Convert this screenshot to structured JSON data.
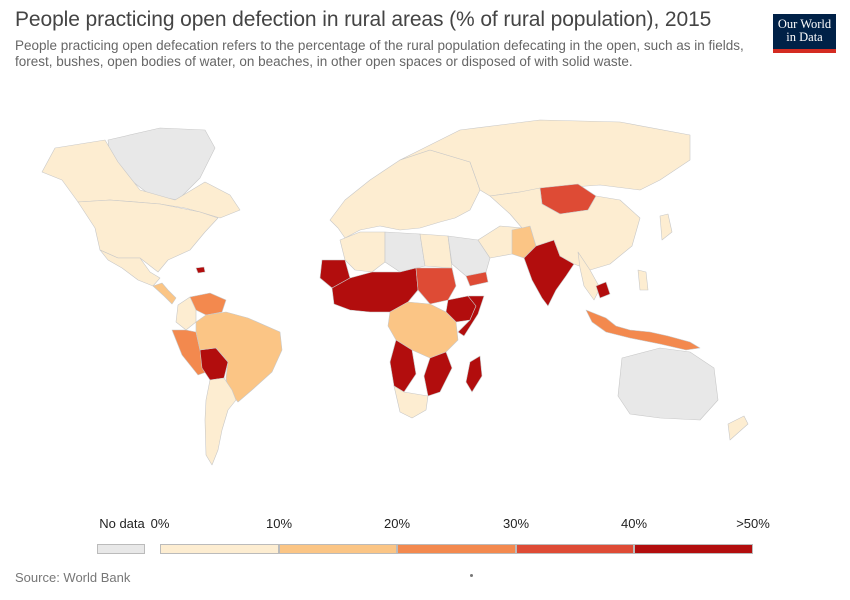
{
  "title": "People practicing open defection in rural areas (% of rural population), 2015",
  "subtitle": "People practicing open defecation refers to the percentage of the rural population defecating in the open, such as in fields, forest, bushes, open bodies of water, on beaches, in other open spaces or disposed of with solid waste.",
  "logo": {
    "line1": "Our World",
    "line2": "in Data"
  },
  "source": "Source: World Bank",
  "colors": {
    "no_data": "#e8e8e8",
    "b0": "#fdedd1",
    "b1": "#fbc585",
    "b2": "#f3894e",
    "b3": "#de4b35",
    "b4": "#b20d0d",
    "border": "#c8c8c8"
  },
  "legend": {
    "no_data_label": "No data",
    "ticks": [
      "0%",
      "10%",
      "20%",
      "30%",
      "40%",
      ">50%"
    ],
    "bins": [
      {
        "range": "0-10%",
        "color": "#fdedd1"
      },
      {
        "range": "10-20%",
        "color": "#fbc585"
      },
      {
        "range": "20-30%",
        "color": "#f3894e"
      },
      {
        "range": "30-40%",
        "color": "#de4b35"
      },
      {
        "range": "40-50%+",
        "color": "#b20d0d"
      }
    ]
  },
  "regions": [
    {
      "name": "Canada",
      "bin": "b0"
    },
    {
      "name": "Greenland",
      "bin": "no_data"
    },
    {
      "name": "United States",
      "bin": "b0"
    },
    {
      "name": "Mexico",
      "bin": "b0"
    },
    {
      "name": "Central America",
      "bin": "b1"
    },
    {
      "name": "Haiti",
      "bin": "b4"
    },
    {
      "name": "Colombia",
      "bin": "b0"
    },
    {
      "name": "Venezuela",
      "bin": "b2"
    },
    {
      "name": "Peru",
      "bin": "b2"
    },
    {
      "name": "Bolivia",
      "bin": "b4"
    },
    {
      "name": "Brazil",
      "bin": "b1"
    },
    {
      "name": "Argentina",
      "bin": "b0"
    },
    {
      "name": "Europe",
      "bin": "b0"
    },
    {
      "name": "Russia",
      "bin": "b0"
    },
    {
      "name": "North Africa",
      "bin": "b0"
    },
    {
      "name": "Libya",
      "bin": "no_data"
    },
    {
      "name": "Mauritania",
      "bin": "b4"
    },
    {
      "name": "Sahel",
      "bin": "b4"
    },
    {
      "name": "Sudan",
      "bin": "b3"
    },
    {
      "name": "Ethiopia",
      "bin": "b4"
    },
    {
      "name": "Somalia",
      "bin": "b4"
    },
    {
      "name": "Central Africa",
      "bin": "b1"
    },
    {
      "name": "Angola",
      "bin": "b4"
    },
    {
      "name": "Mozambique",
      "bin": "b4"
    },
    {
      "name": "Madagascar",
      "bin": "b4"
    },
    {
      "name": "South Africa",
      "bin": "b0"
    },
    {
      "name": "Saudi Arabia",
      "bin": "no_data"
    },
    {
      "name": "Yemen",
      "bin": "b3"
    },
    {
      "name": "Afghanistan",
      "bin": "b1"
    },
    {
      "name": "India",
      "bin": "b4"
    },
    {
      "name": "Nepal",
      "bin": "b4"
    },
    {
      "name": "Mongolia",
      "bin": "b3"
    },
    {
      "name": "China",
      "bin": "b0"
    },
    {
      "name": "Cambodia",
      "bin": "b4"
    },
    {
      "name": "Indonesia",
      "bin": "b2"
    },
    {
      "name": "Australia",
      "bin": "no_data"
    },
    {
      "name": "New Zealand",
      "bin": "b0"
    }
  ]
}
